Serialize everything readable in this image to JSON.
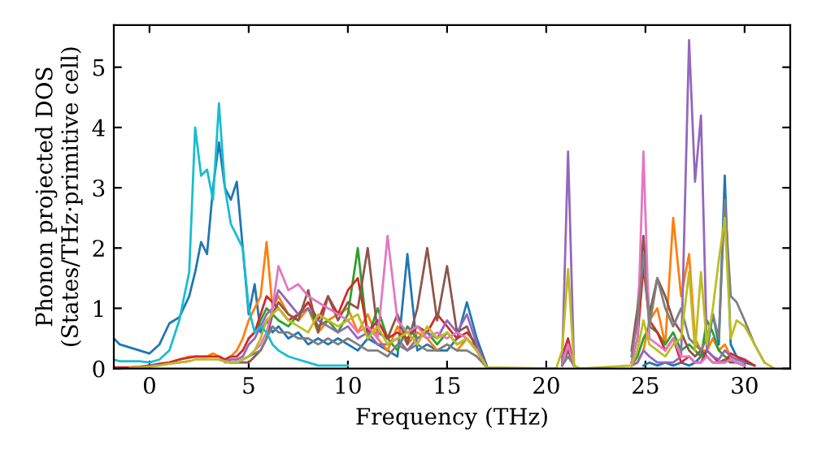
{
  "chart_data": {
    "type": "line",
    "xlabel": "Frequency (THz)",
    "ylabel": "Phonon projected DOS\n(States/THz·primitive cell)",
    "x": [
      -1.8,
      -1.5,
      -1,
      -0.5,
      0,
      0.5,
      1,
      1.5,
      2,
      2.3,
      2.6,
      2.9,
      3.2,
      3.5,
      3.8,
      4.1,
      4.4,
      4.7,
      5,
      5.3,
      5.6,
      5.9,
      6.2,
      6.5,
      7,
      7.5,
      8,
      8.5,
      9,
      9.5,
      10,
      10.5,
      11,
      11.5,
      12,
      12.5,
      13,
      13.5,
      14,
      14.5,
      15,
      15.5,
      16,
      16.5,
      17,
      20.5,
      20.8,
      21.1,
      21.4,
      21.7,
      24.3,
      24.6,
      24.9,
      25.2,
      25.6,
      26,
      26.4,
      26.8,
      27.2,
      27.5,
      27.8,
      28.1,
      28.4,
      28.7,
      29,
      29.3,
      29.6,
      30,
      30.5,
      31,
      31.5
    ],
    "xlim": [
      -1.8,
      32.3
    ],
    "xticks": [
      0,
      5,
      10,
      15,
      20,
      25,
      30
    ],
    "ylim": [
      0,
      5.7
    ],
    "yticks": [
      0,
      1,
      2,
      3,
      4,
      5
    ],
    "grid": false,
    "legend": false,
    "line_style": "solid",
    "marker": "none",
    "series": [
      {
        "color": "#1f77b4",
        "values": [
          0.5,
          0.4,
          0.35,
          0.3,
          0.25,
          0.4,
          0.75,
          0.85,
          1.2,
          1.6,
          2.1,
          1.9,
          3.0,
          3.75,
          3.0,
          2.8,
          3.1,
          2.0,
          0.9,
          1.4,
          0.6,
          0.8,
          0.6,
          0.7,
          0.5,
          0.6,
          0.4,
          0.5,
          0.4,
          0.5,
          0.4,
          0.3,
          0.5,
          0.4,
          0.3,
          0.2,
          1.9,
          0.3,
          0.4,
          0.3,
          0.3,
          0.5,
          1.1,
          0.5,
          0.05,
          null,
          null,
          null,
          null,
          null,
          null,
          null,
          0.05,
          0.1,
          0.05,
          0.1,
          0.05,
          0.1,
          0.05,
          0.1,
          0.2,
          0.3,
          0.9,
          0.4,
          3.2,
          0.4,
          0.2,
          0.1,
          0.05,
          null,
          null
        ]
      },
      {
        "color": "#ff7f0e",
        "values": [
          null,
          null,
          null,
          null,
          null,
          null,
          0.1,
          0.15,
          0.2,
          0.2,
          0.2,
          0.2,
          0.25,
          0.2,
          0.15,
          0.2,
          0.3,
          0.5,
          0.8,
          1.0,
          1.2,
          2.1,
          1.0,
          1.2,
          0.9,
          0.8,
          1.0,
          0.6,
          0.8,
          0.9,
          1.0,
          0.6,
          0.9,
          0.5,
          0.3,
          0.7,
          0.4,
          0.6,
          0.5,
          0.3,
          0.4,
          0.3,
          0.5,
          0.3,
          0.02,
          null,
          null,
          null,
          null,
          null,
          0.05,
          0.1,
          0.3,
          0.8,
          1.0,
          0.4,
          2.5,
          1.2,
          1.9,
          0.5,
          0.3,
          0.3,
          0.5,
          0.3,
          0.4,
          0.2,
          0.15,
          null,
          null,
          null,
          null
        ]
      },
      {
        "color": "#2ca02c",
        "values": [
          null,
          null,
          null,
          null,
          null,
          null,
          null,
          null,
          null,
          null,
          null,
          null,
          null,
          null,
          null,
          null,
          null,
          null,
          0.5,
          0.6,
          0.8,
          1.0,
          0.9,
          0.8,
          0.7,
          0.9,
          1.0,
          0.7,
          0.8,
          0.6,
          0.9,
          2.0,
          0.5,
          1.0,
          0.5,
          0.3,
          0.7,
          0.5,
          0.6,
          0.4,
          0.6,
          0.4,
          0.5,
          0.3,
          0.02,
          null,
          null,
          null,
          null,
          null,
          0.05,
          0.2,
          0.5,
          0.7,
          0.6,
          0.4,
          0.6,
          0.3,
          0.4,
          0.3,
          0.2,
          0.8,
          0.6,
          0.3,
          0.2,
          0.15,
          0.1,
          0.05,
          null,
          null,
          null
        ]
      },
      {
        "color": "#d62728",
        "values": [
          0.02,
          0.02,
          0.02,
          0.03,
          0.05,
          0.08,
          0.1,
          0.15,
          0.18,
          0.2,
          0.2,
          0.2,
          0.2,
          0.2,
          0.15,
          0.2,
          0.2,
          0.3,
          0.5,
          0.6,
          0.9,
          1.2,
          1.1,
          1.0,
          0.8,
          0.9,
          1.1,
          0.8,
          1.2,
          0.9,
          1.3,
          1.5,
          0.6,
          0.8,
          0.5,
          0.6,
          0.5,
          0.7,
          0.6,
          0.9,
          0.7,
          0.5,
          0.6,
          0.4,
          0.02,
          null,
          0.2,
          0.5,
          0.05,
          null,
          0.1,
          0.5,
          1.7,
          0.8,
          0.6,
          0.3,
          0.5,
          0.1,
          0.2,
          0.1,
          0.1,
          0.3,
          0.2,
          0.1,
          0.1,
          0.25,
          0.2,
          0.15,
          0.05,
          null,
          null
        ]
      },
      {
        "color": "#9467bd",
        "values": [
          null,
          null,
          null,
          null,
          0.05,
          0.06,
          0.08,
          0.1,
          0.12,
          null,
          null,
          null,
          null,
          0.15,
          0.12,
          0.15,
          0.15,
          0.2,
          0.4,
          0.5,
          0.7,
          0.9,
          1.0,
          1.3,
          1.1,
          0.9,
          1.0,
          0.8,
          0.7,
          0.6,
          0.7,
          0.5,
          0.6,
          0.4,
          0.4,
          0.5,
          0.3,
          0.5,
          0.6,
          0.5,
          0.8,
          0.6,
          0.9,
          0.4,
          0.02,
          null,
          0.1,
          3.6,
          0.05,
          null,
          0.05,
          0.1,
          0.3,
          0.2,
          0.1,
          0.1,
          0.1,
          0.2,
          5.45,
          3.1,
          4.2,
          0.3,
          0.2,
          0.15,
          0.3,
          0.2,
          0.15,
          0.1,
          null,
          null,
          null
        ]
      },
      {
        "color": "#8c564b",
        "values": [
          null,
          null,
          null,
          null,
          null,
          null,
          null,
          null,
          null,
          null,
          null,
          null,
          null,
          null,
          0.12,
          0.1,
          0.1,
          0.1,
          0.1,
          0.2,
          0.3,
          0.5,
          0.9,
          1.1,
          0.9,
          0.8,
          1.3,
          0.6,
          1.2,
          0.8,
          1.1,
          1.0,
          2.0,
          0.6,
          0.5,
          0.9,
          0.4,
          1.0,
          2.0,
          0.8,
          1.7,
          0.6,
          0.7,
          0.3,
          0.02,
          null,
          0.05,
          0.3,
          0.05,
          null,
          0.3,
          1.0,
          2.2,
          0.9,
          1.5,
          1.2,
          0.8,
          0.6,
          0.3,
          0.2,
          0.3,
          0.2,
          0.1,
          0.1,
          0.15,
          0.1,
          0.1,
          0.05,
          null,
          null,
          null
        ]
      },
      {
        "color": "#e377c2",
        "values": [
          null,
          null,
          null,
          null,
          null,
          null,
          null,
          null,
          null,
          null,
          null,
          null,
          null,
          null,
          0.1,
          0.1,
          0.1,
          0.15,
          0.2,
          0.3,
          0.4,
          0.6,
          1.0,
          1.7,
          1.3,
          1.4,
          1.2,
          1.1,
          1.0,
          0.9,
          0.8,
          0.6,
          0.7,
          0.5,
          2.2,
          0.8,
          0.6,
          0.7,
          0.5,
          0.6,
          0.5,
          0.6,
          0.5,
          0.3,
          0.02,
          null,
          0.05,
          0.4,
          0.05,
          null,
          0.1,
          0.5,
          3.6,
          0.5,
          0.4,
          0.3,
          0.5,
          0.2,
          0.2,
          0.1,
          0.1,
          0.2,
          0.1,
          0.1,
          0.1,
          0.15,
          0.1,
          0.05,
          null,
          null,
          null
        ]
      },
      {
        "color": "#7f7f7f",
        "values": [
          null,
          null,
          null,
          null,
          null,
          null,
          null,
          null,
          null,
          null,
          null,
          null,
          null,
          null,
          0.12,
          0.1,
          0.1,
          0.15,
          0.2,
          0.25,
          0.3,
          0.5,
          0.7,
          0.6,
          0.6,
          0.5,
          0.5,
          0.4,
          0.5,
          0.4,
          0.5,
          0.4,
          0.3,
          0.3,
          0.2,
          0.4,
          0.3,
          0.4,
          0.3,
          0.3,
          0.4,
          0.3,
          0.3,
          0.2,
          0.02,
          null,
          0.05,
          0.2,
          0.05,
          null,
          0.2,
          0.8,
          1.9,
          0.7,
          1.5,
          1.0,
          0.7,
          1.0,
          0.5,
          0.4,
          0.3,
          0.5,
          0.9,
          0.5,
          2.8,
          1.2,
          1.1,
          0.8,
          0.4,
          0.1,
          null
        ]
      },
      {
        "color": "#bcbd22",
        "values": [
          null,
          null,
          0.01,
          0.02,
          0.03,
          0.05,
          0.08,
          0.1,
          0.12,
          0.15,
          0.15,
          0.15,
          0.15,
          0.15,
          0.12,
          0.1,
          0.1,
          0.15,
          0.2,
          0.3,
          0.5,
          0.8,
          0.9,
          1.0,
          0.8,
          0.7,
          0.6,
          0.9,
          0.8,
          0.7,
          0.8,
          0.9,
          0.5,
          0.7,
          0.4,
          0.5,
          0.6,
          0.4,
          0.7,
          0.5,
          0.6,
          0.4,
          0.5,
          0.3,
          0.02,
          0,
          0.3,
          1.65,
          0.05,
          0,
          0.05,
          0.3,
          0.8,
          0.4,
          0.3,
          0.2,
          0.4,
          0.5,
          1.6,
          0.3,
          1.6,
          0.4,
          1.0,
          1.8,
          2.5,
          0.5,
          0.8,
          0.7,
          0.4,
          0.1,
          0
        ]
      },
      {
        "color": "#17becf",
        "values": [
          0.15,
          0.12,
          0.12,
          0.12,
          0.1,
          0.15,
          0.3,
          0.8,
          1.6,
          4.0,
          3.2,
          3.3,
          2.8,
          4.4,
          3.0,
          2.4,
          2.2,
          2.0,
          1.0,
          0.6,
          0.7,
          0.6,
          0.4,
          0.3,
          0.2,
          0.15,
          0.1,
          0.05,
          0.05,
          0.05,
          0.05,
          null,
          null,
          null,
          null,
          null,
          null,
          null,
          null,
          null,
          null,
          null,
          null,
          null,
          null,
          null,
          null,
          null,
          null,
          null,
          null,
          null,
          null,
          null,
          null,
          null,
          null,
          null,
          null,
          null,
          null,
          null,
          null,
          null,
          null,
          null,
          null,
          null,
          null,
          null,
          null
        ]
      }
    ]
  }
}
